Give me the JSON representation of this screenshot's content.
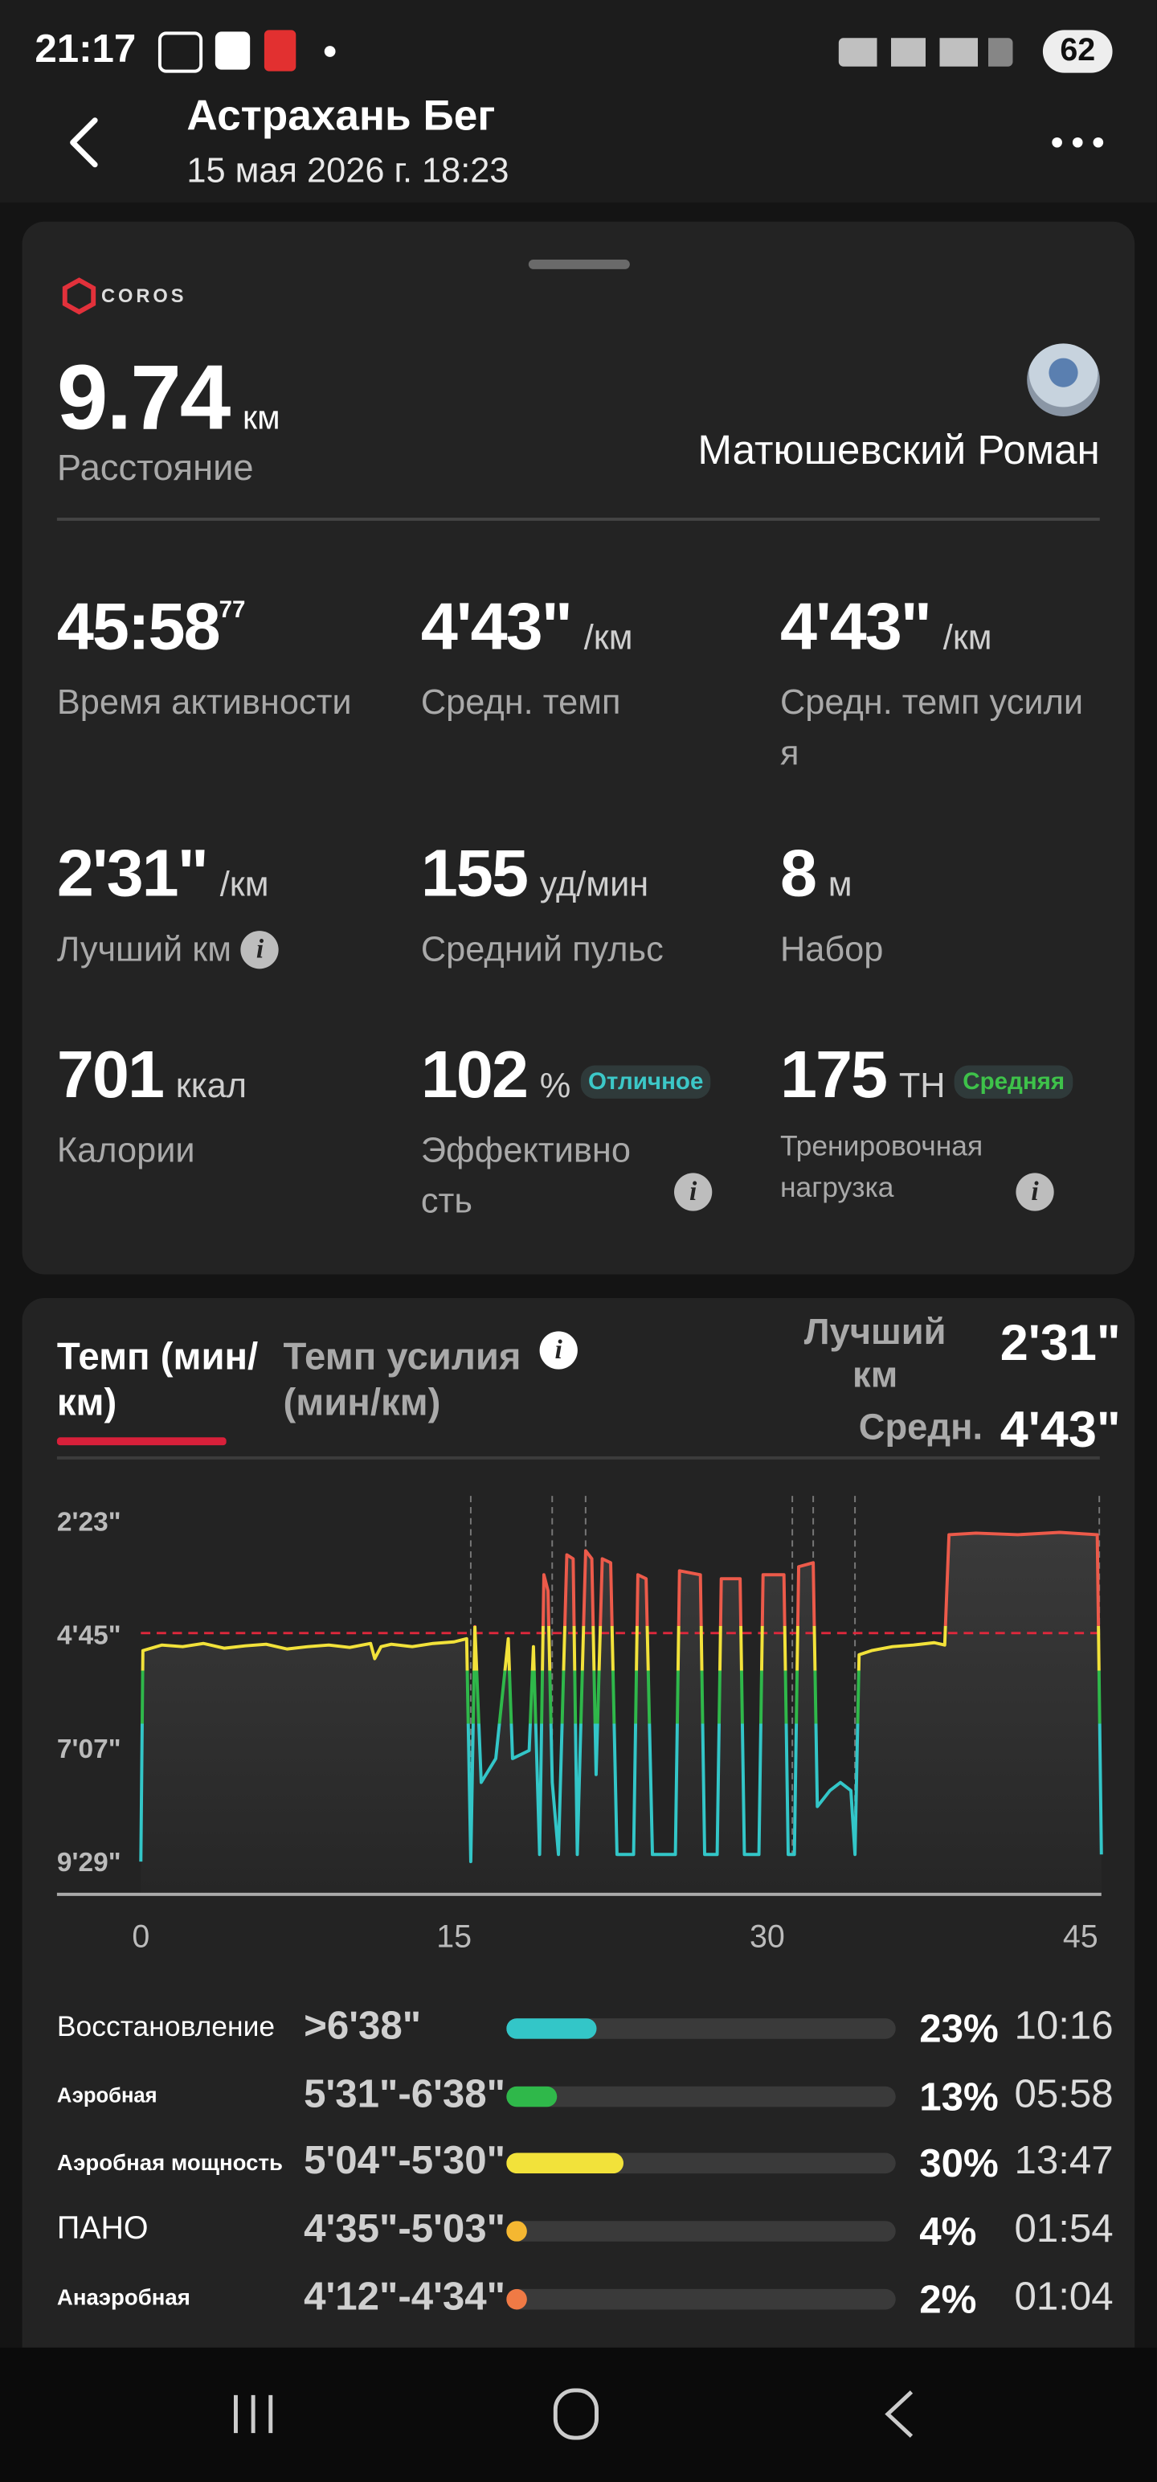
{
  "status": {
    "time": "21:17",
    "battery": "62"
  },
  "header": {
    "title": "Астрахань Бег",
    "subtitle": "15 мая 2026 г. 18:23"
  },
  "summary": {
    "brand": "COROS",
    "distance": {
      "value": "9.74",
      "unit": "км",
      "label": "Расстояние"
    },
    "athlete": "Матюшевский Роман"
  },
  "metrics": [
    {
      "value": "45:58",
      "sup": "77",
      "label": "Время активности"
    },
    {
      "value": "4'43\"",
      "unit": "/км",
      "label": "Средн. темп"
    },
    {
      "value": "4'43\"",
      "unit": "/км",
      "label": "Средн. темп усилия"
    },
    {
      "value": "2'31\"",
      "unit": "/км",
      "label": "Лучший км"
    },
    {
      "value": "155",
      "unit": "уд/мин",
      "label": "Средний пульс"
    },
    {
      "value": "8",
      "unit": "м",
      "label": "Набор"
    },
    {
      "value": "701",
      "unit": "ккал",
      "label": "Калории"
    },
    {
      "value": "102",
      "unit": "%",
      "badge": "Отличное",
      "badge_color": "#3cc8c8",
      "label": "Эффективность"
    },
    {
      "value": "175",
      "unit": "ТН",
      "badge": "Средняя",
      "badge_color": "#3ec24a",
      "label": "Тренировочная нагрузка"
    }
  ],
  "tabs": [
    "Темп (мин/км)",
    "Темп усилия (мин/км)"
  ],
  "best": {
    "label": "Лучший км",
    "value": "2'31\""
  },
  "chart_data": {
    "type": "line",
    "average": {
      "label": "Средн.",
      "value": 283,
      "value_label": "4'43\"",
      "color": "#e0283c"
    },
    "x": [
      0,
      0.1,
      1,
      2,
      3,
      4,
      5,
      6,
      7,
      8,
      9,
      10,
      11,
      11.2,
      11.5,
      12,
      13,
      14,
      15,
      15.6,
      15.8,
      16.0,
      16.3,
      17.0,
      17.6,
      17.8,
      18.6,
      18.8,
      19.1,
      19.3,
      19.5,
      19.7,
      20.0,
      20.4,
      20.7,
      20.9,
      21.3,
      21.6,
      21.8,
      22.1,
      22.5,
      22.8,
      23.6,
      23.8,
      24.2,
      24.5,
      25.6,
      25.8,
      26.8,
      27.0,
      27.6,
      27.8,
      28.7,
      28.9,
      29.6,
      29.8,
      30.8,
      31.0,
      31.3,
      31.5,
      32.2,
      32.4,
      33.0,
      33.5,
      34.0,
      34.2,
      34.4,
      35.0,
      36,
      37,
      38,
      38.5,
      38.7,
      40,
      42,
      44,
      45.8,
      46
    ],
    "values": [
      569,
      305,
      298,
      300,
      296,
      302,
      299,
      297,
      303,
      300,
      298,
      301,
      296,
      315,
      300,
      297,
      300,
      296,
      294,
      290,
      569,
      275,
      470,
      440,
      290,
      440,
      430,
      300,
      560,
      210,
      230,
      470,
      560,
      185,
      190,
      560,
      180,
      190,
      460,
      190,
      195,
      560,
      560,
      210,
      215,
      560,
      560,
      205,
      210,
      560,
      560,
      215,
      215,
      560,
      560,
      210,
      210,
      560,
      560,
      200,
      195,
      500,
      480,
      470,
      480,
      560,
      310,
      305,
      300,
      298,
      295,
      298,
      160,
      158,
      160,
      157,
      160,
      560
    ],
    "xlim": [
      0,
      46
    ],
    "ylim": [
      610,
      110
    ],
    "xticks": [
      0,
      15,
      30,
      45
    ],
    "yticks": [
      {
        "value": 143,
        "label": "2'23\""
      },
      {
        "value": 285,
        "label": "4'45\""
      },
      {
        "value": 427,
        "label": "7'07\""
      },
      {
        "value": 569,
        "label": "9'29\""
      }
    ],
    "lap_markers": [
      15.8,
      19.7,
      21.3,
      31.2,
      32.2,
      34.2,
      45.9
    ]
  },
  "zones": [
    {
      "name": "Восстановление",
      "range": ">6'38\"",
      "percent": 23,
      "percent_label": "23%",
      "time": "10:16",
      "color": "#33c6c8"
    },
    {
      "name": "Аэробная",
      "range": "5'31\"-6'38\"",
      "percent": 13,
      "percent_label": "13%",
      "time": "05:58",
      "color": "#2fb84a"
    },
    {
      "name": "Аэробная мощность",
      "range": "5'04\"-5'30\"",
      "percent": 30,
      "percent_label": "30%",
      "time": "13:47",
      "color": "#f2e23a"
    },
    {
      "name": "ПАНО",
      "range": "4'35\"-5'03\"",
      "percent": 4,
      "percent_label": "4%",
      "time": "01:54",
      "color": "#f5b731"
    },
    {
      "name": "Анаэробная",
      "range": "4'12\"-4'34\"",
      "percent": 2,
      "percent_label": "2%",
      "time": "01:04",
      "color": "#f07a45"
    }
  ]
}
